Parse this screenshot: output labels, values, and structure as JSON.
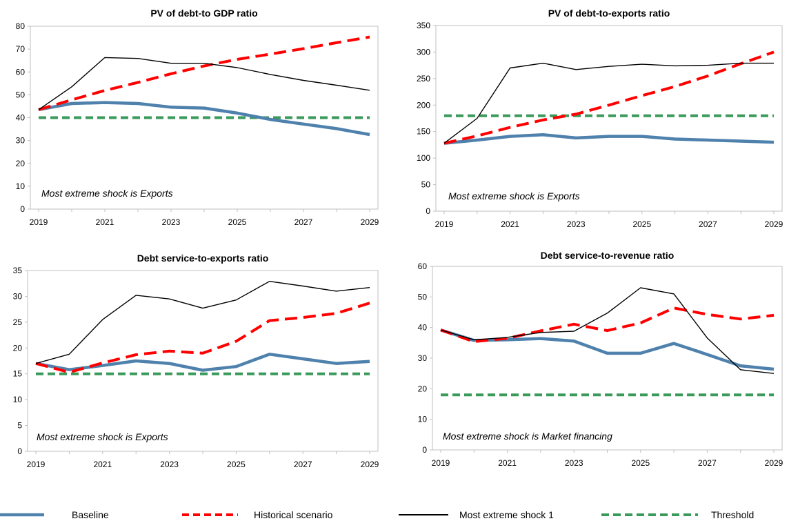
{
  "colors": {
    "baseline": "#4f81ad",
    "historical": "#ff0000",
    "shock": "#000000",
    "threshold": "#3a9a5a",
    "axis": "#bfbfbf"
  },
  "legend": [
    {
      "key": "baseline",
      "label": "Baseline"
    },
    {
      "key": "historical",
      "label": "Historical scenario"
    },
    {
      "key": "shock",
      "label": "Most extreme shock 1"
    },
    {
      "key": "threshold",
      "label": "Threshold"
    }
  ],
  "chart_data": [
    {
      "type": "line",
      "title": "PV of debt-to GDP ratio",
      "note": "Most extreme shock is Exports",
      "x": [
        2019,
        2020,
        2021,
        2022,
        2023,
        2024,
        2025,
        2026,
        2027,
        2028,
        2029
      ],
      "xticks": [
        "2019",
        "2021",
        "2023",
        "2025",
        "2027",
        "2029"
      ],
      "ylim": [
        0,
        80
      ],
      "yticks": [
        "0",
        "10",
        "20",
        "30",
        "40",
        "50",
        "60",
        "70",
        "80"
      ],
      "series": [
        {
          "key": "threshold",
          "values": [
            40,
            40,
            40,
            40,
            40,
            40,
            40,
            40,
            40,
            40,
            40
          ]
        },
        {
          "key": "baseline",
          "values": [
            43.5,
            46.2,
            46.6,
            46.2,
            44.6,
            44.2,
            42.0,
            39.2,
            37.2,
            35.2,
            32.6
          ]
        },
        {
          "key": "historical",
          "values": [
            43.5,
            47.8,
            51.9,
            55.4,
            59.2,
            62.6,
            65.5,
            67.8,
            70.2,
            72.8,
            75.3
          ]
        },
        {
          "key": "shock",
          "values": [
            43.5,
            53.5,
            66.3,
            65.9,
            63.8,
            63.8,
            61.9,
            58.9,
            56.3,
            54.2,
            52.0
          ]
        }
      ]
    },
    {
      "type": "line",
      "title": "PV of debt-to-exports  ratio",
      "note": "Most extreme  shock is Exports",
      "x": [
        2019,
        2020,
        2021,
        2022,
        2023,
        2024,
        2025,
        2026,
        2027,
        2028,
        2029
      ],
      "xticks": [
        "2019",
        "2021",
        "2023",
        "2025",
        "2027",
        "2029"
      ],
      "ylim": [
        0,
        350
      ],
      "yticks": [
        "0",
        "50",
        "100",
        "150",
        "200",
        "250",
        "300",
        "350"
      ],
      "series": [
        {
          "key": "threshold",
          "values": [
            180,
            180,
            180,
            180,
            180,
            180,
            180,
            180,
            180,
            180,
            180
          ]
        },
        {
          "key": "baseline",
          "values": [
            128,
            134,
            141,
            144,
            138,
            141,
            141,
            136,
            134,
            132,
            130
          ]
        },
        {
          "key": "historical",
          "values": [
            128,
            142,
            158,
            172,
            183,
            200,
            218,
            235,
            255,
            278,
            300
          ]
        },
        {
          "key": "shock",
          "values": [
            128,
            175,
            270,
            279,
            267,
            273,
            277,
            274,
            275,
            279,
            279
          ]
        }
      ]
    },
    {
      "type": "line",
      "title": "Debt service-to-exports  ratio",
      "note": "Most extreme shock is Exports",
      "x": [
        2019,
        2020,
        2021,
        2022,
        2023,
        2024,
        2025,
        2026,
        2027,
        2028,
        2029
      ],
      "xticks": [
        "2019",
        "2021",
        "2023",
        "2025",
        "2027",
        "2029"
      ],
      "ylim": [
        0,
        35
      ],
      "yticks": [
        "0",
        "5",
        "10",
        "15",
        "20",
        "25",
        "30",
        "35"
      ],
      "series": [
        {
          "key": "threshold",
          "values": [
            15,
            15,
            15,
            15,
            15,
            15,
            15,
            15,
            15,
            15,
            15
          ]
        },
        {
          "key": "baseline",
          "values": [
            17.0,
            15.8,
            16.6,
            17.5,
            17.0,
            15.7,
            16.4,
            18.8,
            17.9,
            17.0,
            17.4
          ]
        },
        {
          "key": "historical",
          "values": [
            17.0,
            15.3,
            17.1,
            18.7,
            19.4,
            19.0,
            21.3,
            25.3,
            25.9,
            26.7,
            28.7
          ]
        },
        {
          "key": "shock",
          "values": [
            17.0,
            18.8,
            25.5,
            30.2,
            29.5,
            27.7,
            29.3,
            32.9,
            32.0,
            31.0,
            31.7
          ]
        }
      ]
    },
    {
      "type": "line",
      "title": "Debt service-to-revenue  ratio",
      "note": "Most extreme  shock is Market financing",
      "x": [
        2019,
        2020,
        2021,
        2022,
        2023,
        2024,
        2025,
        2026,
        2027,
        2028,
        2029
      ],
      "xticks": [
        "2019",
        "2021",
        "2023",
        "2025",
        "2027",
        "2029"
      ],
      "ylim": [
        0,
        60
      ],
      "yticks": [
        "0",
        "10",
        "20",
        "30",
        "40",
        "50",
        "60"
      ],
      "series": [
        {
          "key": "threshold",
          "values": [
            18,
            18,
            18,
            18,
            18,
            18,
            18,
            18,
            18,
            18,
            18
          ]
        },
        {
          "key": "baseline",
          "values": [
            39.2,
            35.8,
            36.0,
            36.4,
            35.6,
            31.6,
            31.6,
            34.8,
            31.2,
            27.5,
            26.4
          ]
        },
        {
          "key": "historical",
          "values": [
            39.2,
            35.4,
            36.5,
            38.9,
            41.1,
            39.0,
            41.5,
            46.4,
            44.3,
            42.8,
            44.0
          ]
        },
        {
          "key": "shock",
          "values": [
            39.2,
            36.0,
            36.8,
            38.4,
            38.8,
            44.7,
            53.0,
            51.0,
            36.6,
            26.2,
            25.0
          ]
        }
      ]
    }
  ]
}
